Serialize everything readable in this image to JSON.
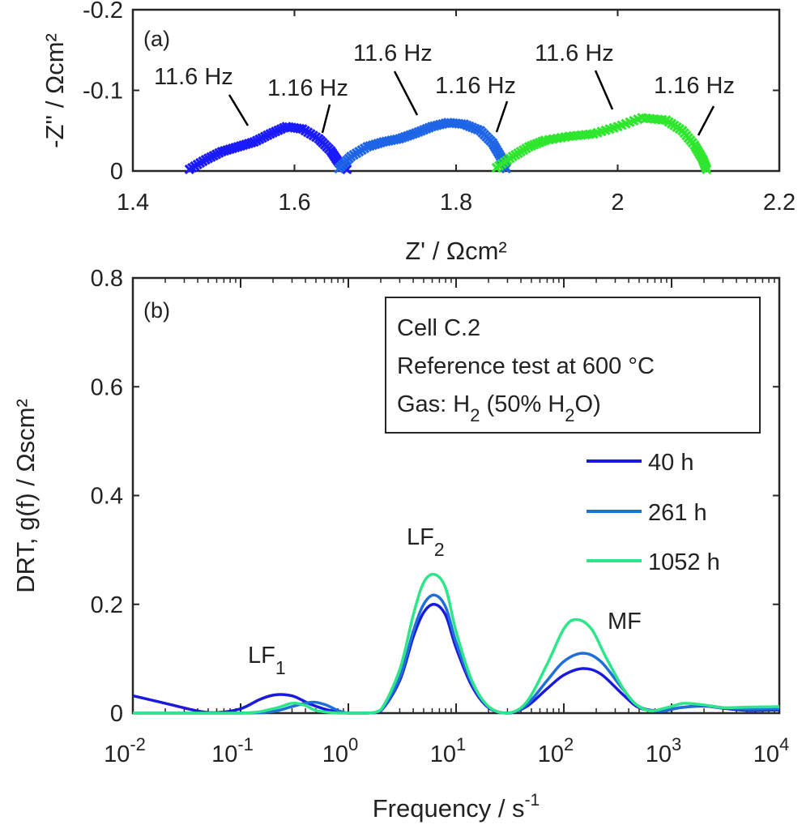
{
  "chart_data": [
    {
      "panel_label": "(a)",
      "type": "scatter",
      "xlabel": "Z' / Ωcm²",
      "ylabel": "-Z'' / Ωcm²",
      "xlim": [
        1.4,
        2.2
      ],
      "ylim": [
        0,
        -0.2
      ],
      "y_axis_reversed": true,
      "x_ticks": [
        "1.4",
        "1.6",
        "1.8",
        "2",
        "2.2"
      ],
      "y_ticks": [
        "0",
        "-0.1",
        "-0.2"
      ],
      "grid": false,
      "marker": "x",
      "series": [
        {
          "color": "#1a1aff",
          "points": [
            [
              1.47,
              -0.002
            ],
            [
              1.49,
              -0.014
            ],
            [
              1.51,
              -0.024
            ],
            [
              1.53,
              -0.03
            ],
            [
              1.55,
              -0.036
            ],
            [
              1.57,
              -0.046
            ],
            [
              1.59,
              -0.055
            ],
            [
              1.61,
              -0.052
            ],
            [
              1.63,
              -0.04
            ],
            [
              1.645,
              -0.025
            ],
            [
              1.655,
              -0.01
            ],
            [
              1.665,
              -0.002
            ]
          ]
        },
        {
          "color": "#1e64e6",
          "points": [
            [
              1.655,
              -0.003
            ],
            [
              1.67,
              -0.018
            ],
            [
              1.69,
              -0.03
            ],
            [
              1.71,
              -0.036
            ],
            [
              1.73,
              -0.04
            ],
            [
              1.75,
              -0.047
            ],
            [
              1.77,
              -0.055
            ],
            [
              1.79,
              -0.06
            ],
            [
              1.81,
              -0.058
            ],
            [
              1.83,
              -0.05
            ],
            [
              1.845,
              -0.035
            ],
            [
              1.855,
              -0.018
            ],
            [
              1.862,
              -0.003
            ]
          ]
        },
        {
          "color": "#2ee62e",
          "points": [
            [
              1.85,
              -0.004
            ],
            [
              1.87,
              -0.018
            ],
            [
              1.89,
              -0.03
            ],
            [
              1.91,
              -0.038
            ],
            [
              1.94,
              -0.043
            ],
            [
              1.97,
              -0.046
            ],
            [
              2.0,
              -0.055
            ],
            [
              2.03,
              -0.066
            ],
            [
              2.06,
              -0.063
            ],
            [
              2.08,
              -0.05
            ],
            [
              2.095,
              -0.032
            ],
            [
              2.105,
              -0.015
            ],
            [
              2.11,
              -0.002
            ]
          ]
        }
      ],
      "annotations": [
        {
          "text": "11.6 Hz",
          "x": 1.54,
          "y": -0.053
        },
        {
          "text": "1.16 Hz",
          "x": 1.64,
          "y": -0.047
        },
        {
          "text": "11.6 Hz",
          "x": 1.75,
          "y": -0.067
        },
        {
          "text": "1.16 Hz",
          "x": 1.855,
          "y": -0.048
        },
        {
          "text": "11.6 Hz",
          "x": 2.0,
          "y": -0.075
        },
        {
          "text": "1.16 Hz",
          "x": 2.11,
          "y": -0.045
        }
      ]
    },
    {
      "panel_label": "(b)",
      "type": "line",
      "xlabel": "Frequency / s",
      "xlabel_sup": "-1",
      "ylabel": "DRT, g(f) / Ωscm²",
      "x_scale": "log",
      "xlim": [
        0.01,
        10000
      ],
      "ylim": [
        0,
        0.8
      ],
      "x_ticks": [
        {
          "base": "10",
          "exp": "-2"
        },
        {
          "base": "10",
          "exp": "-1"
        },
        {
          "base": "10",
          "exp": "0"
        },
        {
          "base": "10",
          "exp": "1"
        },
        {
          "base": "10",
          "exp": "2"
        },
        {
          "base": "10",
          "exp": "3"
        },
        {
          "base": "10",
          "exp": "4"
        }
      ],
      "y_ticks": [
        "0",
        "0.2",
        "0.4",
        "0.6",
        "0.8"
      ],
      "grid": false,
      "legend_position": "right-middle",
      "info_box": {
        "line1": "Cell C.2",
        "line2": "Reference test at 600 °C",
        "gas_prefix": "Gas: H",
        "gas_sub1": "2",
        "gas_mid": " (50% H",
        "gas_sub2": "2",
        "gas_suffix": "O)"
      },
      "peak_labels": [
        {
          "text": "LF",
          "sub": "1",
          "x": 0.25,
          "y": 0.07
        },
        {
          "text": "LF",
          "sub": "2",
          "x": 6.3,
          "y": 0.3
        },
        {
          "text": "MF",
          "sub": "",
          "x": 200,
          "y": 0.18
        }
      ],
      "series": [
        {
          "name": "40 h",
          "color": "#1a1add",
          "points": [
            [
              0.01,
              0.032
            ],
            [
              0.02,
              0.018
            ],
            [
              0.04,
              0.004
            ],
            [
              0.06,
              0.001
            ],
            [
              0.1,
              0.008
            ],
            [
              0.15,
              0.025
            ],
            [
              0.2,
              0.033
            ],
            [
              0.25,
              0.034
            ],
            [
              0.32,
              0.03
            ],
            [
              0.45,
              0.016
            ],
            [
              0.7,
              0.004
            ],
            [
              1.0,
              0.0
            ],
            [
              1.5,
              0.0
            ],
            [
              2.0,
              0.004
            ],
            [
              3.0,
              0.06
            ],
            [
              4.0,
              0.14
            ],
            [
              5.0,
              0.185
            ],
            [
              6.3,
              0.2
            ],
            [
              8.0,
              0.18
            ],
            [
              10,
              0.12
            ],
            [
              14,
              0.05
            ],
            [
              20,
              0.01
            ],
            [
              30,
              0.0
            ],
            [
              45,
              0.012
            ],
            [
              70,
              0.045
            ],
            [
              100,
              0.07
            ],
            [
              150,
              0.082
            ],
            [
              220,
              0.072
            ],
            [
              350,
              0.035
            ],
            [
              500,
              0.01
            ],
            [
              800,
              0.004
            ],
            [
              1200,
              0.01
            ],
            [
              2000,
              0.013
            ],
            [
              3000,
              0.009
            ],
            [
              5000,
              0.005
            ],
            [
              10000,
              0.006
            ]
          ]
        },
        {
          "name": "261 h",
          "color": "#1f6fd9",
          "points": [
            [
              0.01,
              0.0
            ],
            [
              0.1,
              0.0
            ],
            [
              0.2,
              0.003
            ],
            [
              0.3,
              0.012
            ],
            [
              0.45,
              0.02
            ],
            [
              0.6,
              0.016
            ],
            [
              0.8,
              0.005
            ],
            [
              1.0,
              0.0
            ],
            [
              1.5,
              0.0
            ],
            [
              2.0,
              0.005
            ],
            [
              3.0,
              0.065
            ],
            [
              4.0,
              0.15
            ],
            [
              5.0,
              0.2
            ],
            [
              6.3,
              0.217
            ],
            [
              8.0,
              0.195
            ],
            [
              10,
              0.13
            ],
            [
              14,
              0.055
            ],
            [
              20,
              0.012
            ],
            [
              30,
              0.0
            ],
            [
              45,
              0.015
            ],
            [
              70,
              0.06
            ],
            [
              100,
              0.095
            ],
            [
              150,
              0.11
            ],
            [
              220,
              0.095
            ],
            [
              350,
              0.045
            ],
            [
              500,
              0.012
            ],
            [
              800,
              0.004
            ],
            [
              1200,
              0.01
            ],
            [
              2000,
              0.014
            ],
            [
              3000,
              0.01
            ],
            [
              5000,
              0.007
            ],
            [
              10000,
              0.008
            ]
          ]
        },
        {
          "name": "1052 h",
          "color": "#2ee68a",
          "points": [
            [
              0.01,
              0.0
            ],
            [
              0.1,
              0.0
            ],
            [
              0.2,
              0.008
            ],
            [
              0.3,
              0.018
            ],
            [
              0.4,
              0.014
            ],
            [
              0.5,
              0.005
            ],
            [
              0.8,
              0.0
            ],
            [
              1.0,
              0.0
            ],
            [
              1.5,
              0.0
            ],
            [
              2.0,
              0.006
            ],
            [
              3.0,
              0.08
            ],
            [
              4.0,
              0.18
            ],
            [
              5.0,
              0.24
            ],
            [
              6.3,
              0.255
            ],
            [
              8.0,
              0.23
            ],
            [
              10,
              0.15
            ],
            [
              14,
              0.06
            ],
            [
              20,
              0.012
            ],
            [
              30,
              0.0
            ],
            [
              45,
              0.02
            ],
            [
              70,
              0.09
            ],
            [
              100,
              0.155
            ],
            [
              130,
              0.172
            ],
            [
              180,
              0.155
            ],
            [
              250,
              0.1
            ],
            [
              400,
              0.03
            ],
            [
              600,
              0.005
            ],
            [
              900,
              0.01
            ],
            [
              1300,
              0.018
            ],
            [
              2000,
              0.015
            ],
            [
              3000,
              0.01
            ],
            [
              5000,
              0.011
            ],
            [
              10000,
              0.012
            ]
          ]
        }
      ]
    }
  ]
}
